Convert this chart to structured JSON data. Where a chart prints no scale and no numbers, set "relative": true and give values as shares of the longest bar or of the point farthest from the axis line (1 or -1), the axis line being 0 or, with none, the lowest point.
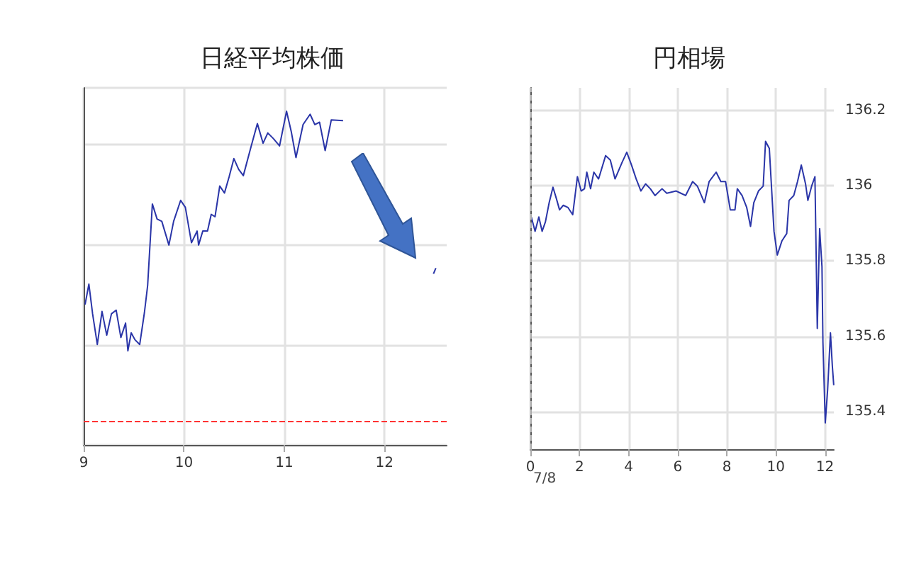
{
  "chart_data": [
    {
      "type": "line",
      "title": "日経平均株価",
      "relative": true,
      "tick_labels": "x",
      "grid": true,
      "xlim": [
        9,
        12.62
      ],
      "xticks": [
        9,
        10,
        11,
        12
      ],
      "x": [
        9.014,
        9.052,
        9.089,
        9.136,
        9.183,
        9.23,
        9.277,
        9.324,
        9.371,
        9.418,
        9.441,
        9.474,
        9.512,
        9.559,
        9.606,
        9.638,
        9.685,
        9.732,
        9.779,
        9.85,
        9.897,
        9.967,
        10.014,
        10.075,
        10.131,
        10.146,
        10.188,
        10.235,
        10.272,
        10.31,
        10.357,
        10.404,
        10.451,
        10.498,
        10.545,
        10.592,
        10.671,
        10.732,
        10.789,
        10.836,
        10.892,
        10.953,
        11.023,
        11.07,
        11.117,
        11.188,
        11.258,
        11.305,
        11.352,
        11.408,
        11.469,
        11.587
      ],
      "series": [
        {
          "color": "#2a35a8",
          "values": [
            0.421,
            0.482,
            0.393,
            0.301,
            0.4,
            0.329,
            0.393,
            0.404,
            0.322,
            0.365,
            0.282,
            0.336,
            0.315,
            0.301,
            0.397,
            0.478,
            0.722,
            0.677,
            0.67,
            0.599,
            0.67,
            0.733,
            0.712,
            0.606,
            0.641,
            0.599,
            0.641,
            0.641,
            0.691,
            0.684,
            0.776,
            0.755,
            0.804,
            0.858,
            0.826,
            0.807,
            0.896,
            0.963,
            0.904,
            0.935,
            0.918,
            0.896,
            1.0,
            0.939,
            0.861,
            0.96,
            0.991,
            0.96,
            0.967,
            0.882,
            0.974,
            0.972
          ]
        },
        {
          "color": "#2a35a8",
          "x": [
            12.488,
            12.512
          ],
          "values": [
            0.513,
            0.53
          ]
        }
      ],
      "ref_lines": [
        {
          "axis": "y",
          "value": 0.072,
          "color": "#ff3333",
          "line_style": "dashed"
        }
      ]
    },
    {
      "type": "line",
      "title": "円相場",
      "grid": true,
      "xlim": [
        0,
        12.36
      ],
      "xticks": [
        0,
        2,
        4,
        6,
        8,
        10,
        12
      ],
      "y2lim": [
        135.3,
        136.26
      ],
      "y2ticks": [
        135.4,
        135.6,
        135.8,
        136,
        136.2
      ],
      "annotations": [
        "7/8"
      ],
      "x": [
        0.038,
        0.192,
        0.345,
        0.479,
        0.613,
        0.766,
        0.92,
        1.054,
        1.188,
        1.341,
        1.533,
        1.724,
        1.916,
        2.069,
        2.203,
        2.299,
        2.452,
        2.586,
        2.778,
        3.065,
        3.257,
        3.448,
        3.736,
        3.927,
        4.119,
        4.31,
        4.502,
        4.693,
        4.885,
        5.077,
        5.364,
        5.556,
        5.939,
        6.13,
        6.322,
        6.609,
        6.801,
        7.088,
        7.28,
        7.567,
        7.759,
        7.95,
        8.142,
        8.333,
        8.429,
        8.621,
        8.812,
        8.966,
        9.1,
        9.291,
        9.483,
        9.579,
        9.732,
        9.923,
        10.057,
        10.249,
        10.441,
        10.536,
        10.728,
        10.881,
        11.034,
        11.207,
        11.303,
        11.456,
        11.59,
        11.686,
        11.782,
        11.877,
        11.916,
        12.011,
        12.107,
        12.222,
        12.299,
        12.356
      ],
      "series": [
        {
          "color": "#2a35a8",
          "axis": "y2",
          "values": [
            135.917,
            135.879,
            135.917,
            135.879,
            135.904,
            135.955,
            135.996,
            135.967,
            135.936,
            135.948,
            135.942,
            135.923,
            136.024,
            135.986,
            135.992,
            136.036,
            135.992,
            136.036,
            136.018,
            136.08,
            136.068,
            136.018,
            136.062,
            136.089,
            136.055,
            136.018,
            135.986,
            136.005,
            135.992,
            135.974,
            135.992,
            135.98,
            135.986,
            135.98,
            135.974,
            136.011,
            135.999,
            135.955,
            136.011,
            136.036,
            136.011,
            136.011,
            135.936,
            135.936,
            135.992,
            135.974,
            135.942,
            135.892,
            135.955,
            135.986,
            135.999,
            136.118,
            136.099,
            135.879,
            135.816,
            135.854,
            135.873,
            135.961,
            135.974,
            136.011,
            136.055,
            136.005,
            135.961,
            135.999,
            136.024,
            135.621,
            135.886,
            135.785,
            135.584,
            135.37,
            135.458,
            135.609,
            135.521,
            135.47
          ]
        }
      ],
      "ref_lines": [
        {
          "axis": "x",
          "value": 0,
          "color": "#aaaaaa",
          "line_style": "dashed"
        }
      ]
    }
  ]
}
